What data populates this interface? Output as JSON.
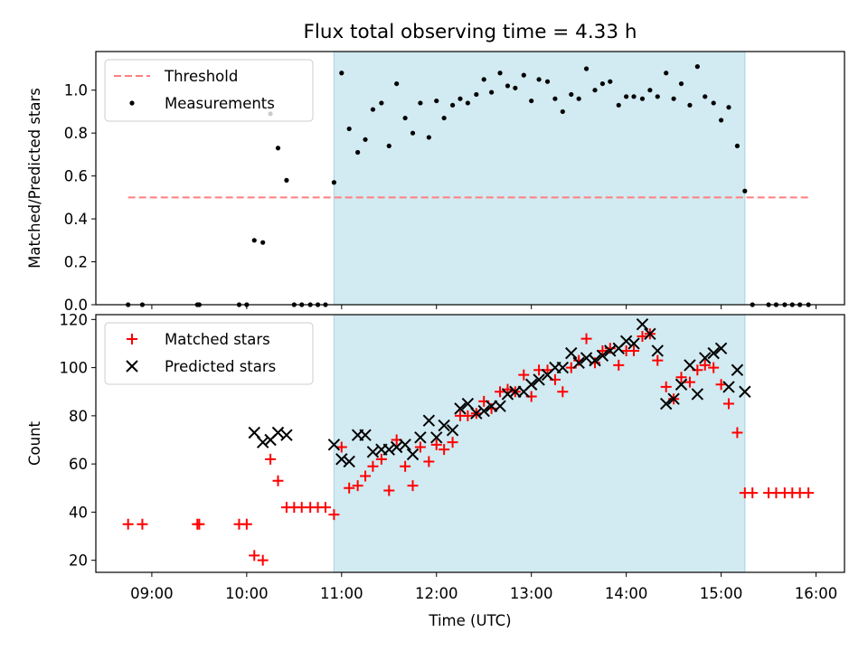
{
  "title": "Flux total observing time = 4.33 h",
  "colors": {
    "shade": "#add8e6",
    "threshold": "#ff7f7f",
    "matched": "#ff0000",
    "predicted": "#000000",
    "measurement": "#000000"
  },
  "chart_data": [
    {
      "type": "scatter",
      "ylabel": "Matched/Predicted stars",
      "xlim": [
        8.41,
        16.3
      ],
      "ylim": [
        0,
        1.18
      ],
      "yticks": [
        0.0,
        0.2,
        0.4,
        0.6,
        0.8,
        1.0
      ],
      "ytick_labels": [
        "0.0",
        "0.2",
        "0.4",
        "0.6",
        "0.8",
        "1.0"
      ],
      "shaded_span": [
        10.92,
        15.25
      ],
      "threshold": {
        "label": "Threshold",
        "y": 0.5,
        "x": [
          8.75,
          15.92
        ]
      },
      "legend": {
        "position": "upper left",
        "entries": [
          "Threshold",
          "Measurements"
        ]
      },
      "series": [
        {
          "name": "Measurements",
          "x": [
            8.75,
            8.9,
            9.48,
            9.5,
            9.92,
            10.0,
            10.08,
            10.17,
            10.25,
            10.33,
            10.42,
            10.5,
            10.58,
            10.67,
            10.75,
            10.83,
            10.92,
            11.0,
            11.08,
            11.17,
            11.25,
            11.33,
            11.42,
            11.5,
            11.58,
            11.67,
            11.75,
            11.83,
            11.92,
            12.0,
            12.08,
            12.17,
            12.25,
            12.33,
            12.42,
            12.5,
            12.58,
            12.67,
            12.75,
            12.83,
            12.92,
            13.0,
            13.08,
            13.17,
            13.25,
            13.33,
            13.42,
            13.5,
            13.58,
            13.67,
            13.75,
            13.83,
            13.92,
            14.0,
            14.08,
            14.17,
            14.25,
            14.33,
            14.42,
            14.5,
            14.58,
            14.67,
            14.75,
            14.83,
            14.92,
            15.0,
            15.08,
            15.17,
            15.25,
            15.33,
            15.5,
            15.58,
            15.67,
            15.75,
            15.83,
            15.92
          ],
          "y": [
            0,
            0,
            0,
            0,
            0,
            0,
            0.3,
            0.29,
            0.89,
            0.73,
            0.58,
            0,
            0,
            0,
            0,
            0,
            0.57,
            1.08,
            0.82,
            0.71,
            0.77,
            0.91,
            0.94,
            0.74,
            1.03,
            0.87,
            0.8,
            0.94,
            0.78,
            0.95,
            0.87,
            0.93,
            0.96,
            0.94,
            0.98,
            1.05,
            0.99,
            1.08,
            1.02,
            1.01,
            1.07,
            0.95,
            1.05,
            1.04,
            0.96,
            0.9,
            0.98,
            0.96,
            1.1,
            1.0,
            1.03,
            1.04,
            0.93,
            0.97,
            0.97,
            0.96,
            1.0,
            0.97,
            1.08,
            0.96,
            1.03,
            0.93,
            1.11,
            0.97,
            0.94,
            0.86,
            0.92,
            0.74,
            0.53,
            0,
            0,
            0,
            0,
            0,
            0,
            0
          ]
        }
      ]
    },
    {
      "type": "scatter",
      "ylabel": "Count",
      "xlabel": "Time (UTC)",
      "xlim": [
        8.41,
        16.3
      ],
      "ylim": [
        15,
        122
      ],
      "yticks": [
        20,
        40,
        60,
        80,
        100,
        120
      ],
      "ytick_labels": [
        "20",
        "40",
        "60",
        "80",
        "100",
        "120"
      ],
      "xticks": [
        9,
        10,
        11,
        12,
        13,
        14,
        15,
        16
      ],
      "xtick_labels": [
        "09:00",
        "10:00",
        "11:00",
        "12:00",
        "13:00",
        "14:00",
        "15:00",
        "16:00"
      ],
      "shaded_span": [
        10.92,
        15.25
      ],
      "legend": {
        "position": "upper left",
        "entries": [
          "Matched stars",
          "Predicted stars"
        ]
      },
      "series": [
        {
          "name": "Matched stars",
          "marker": "+",
          "x": [
            8.75,
            8.9,
            9.48,
            9.5,
            9.92,
            10.0,
            10.08,
            10.17,
            10.25,
            10.33,
            10.42,
            10.5,
            10.58,
            10.67,
            10.75,
            10.83,
            10.92,
            11.0,
            11.08,
            11.17,
            11.25,
            11.33,
            11.42,
            11.5,
            11.58,
            11.67,
            11.75,
            11.83,
            11.92,
            12.0,
            12.08,
            12.17,
            12.25,
            12.33,
            12.42,
            12.5,
            12.58,
            12.67,
            12.75,
            12.83,
            12.92,
            13.0,
            13.08,
            13.17,
            13.25,
            13.33,
            13.42,
            13.5,
            13.58,
            13.67,
            13.75,
            13.83,
            13.92,
            14.0,
            14.08,
            14.17,
            14.25,
            14.33,
            14.42,
            14.5,
            14.58,
            14.67,
            14.75,
            14.83,
            14.92,
            15.0,
            15.08,
            15.17,
            15.25,
            15.33,
            15.5,
            15.58,
            15.67,
            15.75,
            15.83,
            15.92
          ],
          "y": [
            35,
            35,
            35,
            35,
            35,
            35,
            22,
            20,
            62,
            53,
            42,
            42,
            42,
            42,
            42,
            42,
            39,
            67,
            50,
            51,
            55,
            59,
            62,
            49,
            70,
            59,
            51,
            67,
            61,
            68,
            66,
            69,
            80,
            80,
            81,
            86,
            83,
            90,
            91,
            90,
            97,
            88,
            99,
            99,
            95,
            90,
            100,
            103,
            112,
            102,
            107,
            108,
            101,
            107,
            107,
            113,
            114,
            103,
            92,
            87,
            96,
            94,
            99,
            101,
            100,
            93,
            85,
            73,
            48,
            48,
            48,
            48,
            48,
            48,
            48,
            48
          ]
        },
        {
          "name": "Predicted stars",
          "marker": "x",
          "x": [
            10.08,
            10.17,
            10.25,
            10.33,
            10.42,
            10.92,
            11.0,
            11.08,
            11.17,
            11.25,
            11.33,
            11.42,
            11.5,
            11.58,
            11.67,
            11.75,
            11.83,
            11.92,
            12.0,
            12.08,
            12.17,
            12.25,
            12.33,
            12.42,
            12.5,
            12.58,
            12.67,
            12.75,
            12.83,
            12.92,
            13.0,
            13.08,
            13.17,
            13.25,
            13.33,
            13.42,
            13.5,
            13.58,
            13.67,
            13.75,
            13.83,
            13.92,
            14.0,
            14.08,
            14.17,
            14.25,
            14.33,
            14.42,
            14.5,
            14.58,
            14.67,
            14.75,
            14.83,
            14.92,
            15.0,
            15.08,
            15.17,
            15.25
          ],
          "y": [
            73,
            69,
            70,
            73,
            72,
            68,
            62,
            61,
            72,
            72,
            65,
            66,
            66,
            67,
            68,
            64,
            71,
            78,
            71,
            76,
            74,
            83,
            85,
            81,
            82,
            84,
            84,
            89,
            90,
            90,
            93,
            95,
            97,
            100,
            100,
            106,
            102,
            104,
            103,
            105,
            107,
            108,
            111,
            110,
            118,
            114,
            107,
            85,
            87,
            93,
            101,
            89,
            104,
            106,
            108,
            92,
            99,
            90
          ]
        }
      ]
    }
  ]
}
